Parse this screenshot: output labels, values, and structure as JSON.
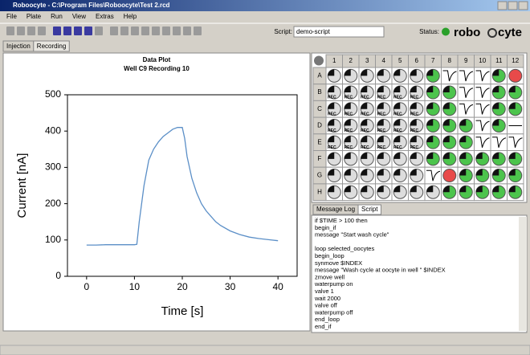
{
  "window": {
    "title": "Roboocyte - C:\\Program Files\\Roboocyte\\Test 2.rcd"
  },
  "menu": [
    "File",
    "Plate",
    "Run",
    "View",
    "Extras",
    "Help"
  ],
  "toolbar": {
    "script_label": "Script:",
    "script_name": "demo-script",
    "status_label": "Status:",
    "logo_left": "robo",
    "logo_right": "cyte"
  },
  "tabs": [
    "Injection",
    "Recording"
  ],
  "chart_data": {
    "type": "line",
    "title": "Data Plot",
    "subtitle": "Well C9 Recording 10",
    "x_label": "Time [s]",
    "y_label": "Current [nA]",
    "x": [
      0,
      2,
      4,
      6,
      8,
      10,
      10.5,
      11,
      12,
      13,
      14,
      15,
      16,
      17,
      18,
      19,
      20,
      20.5,
      21,
      22,
      23,
      24,
      25,
      26,
      27,
      28,
      30,
      32,
      34,
      36,
      38,
      40
    ],
    "values": [
      86,
      86,
      87,
      87,
      87,
      87,
      88,
      150,
      250,
      320,
      350,
      370,
      385,
      395,
      405,
      410,
      410,
      380,
      330,
      270,
      230,
      200,
      180,
      165,
      150,
      140,
      125,
      115,
      108,
      104,
      101,
      98
    ],
    "color": "#5b8fc7",
    "xlim": [
      -4,
      44
    ],
    "ylim": [
      0,
      500
    ],
    "xticks": [
      0,
      10,
      20,
      30,
      40
    ],
    "yticks": [
      0,
      100,
      200,
      300,
      400,
      500
    ]
  },
  "plate": {
    "columns": [
      "1",
      "2",
      "3",
      "4",
      "5",
      "6",
      "7",
      "8",
      "9",
      "10",
      "11",
      "12"
    ],
    "rows": [
      "A",
      "B",
      "C",
      "D",
      "E",
      "F",
      "G",
      "H"
    ],
    "cells": [
      [
        null,
        null,
        null,
        null,
        null,
        null,
        null,
        null,
        null,
        null,
        null,
        null
      ],
      [
        "REC",
        "REC",
        "REC",
        "REC",
        "REC",
        "REC",
        null,
        null,
        null,
        null,
        null,
        null
      ],
      [
        "REC",
        "REC",
        "REC",
        "REC",
        "REC",
        "REC",
        null,
        null,
        null,
        null,
        null,
        null
      ],
      [
        "REC",
        "REC",
        "REC",
        "REC",
        "REC",
        "REC",
        null,
        null,
        null,
        null,
        null,
        null
      ],
      [
        "REC",
        "REC",
        "REC",
        "REC",
        "REC",
        "REC",
        null,
        null,
        null,
        null,
        null,
        null
      ],
      [
        null,
        null,
        null,
        null,
        null,
        null,
        null,
        null,
        null,
        null,
        null,
        null
      ],
      [
        null,
        null,
        null,
        null,
        null,
        null,
        null,
        null,
        null,
        null,
        null,
        null
      ],
      [
        null,
        null,
        null,
        null,
        null,
        null,
        null,
        null,
        null,
        null,
        null,
        null
      ]
    ]
  },
  "log_tabs": [
    "Message Log",
    "Script"
  ],
  "script": [
    "if $TIME > 100 then",
    "begin_if",
    "message \"Start wash cycle\"",
    "loop selected_oocytes",
    "begin_loop",
    "synmove $INDEX",
    "message \"Wash cycle at oocyte in well \" $INDEX",
    "zmove well",
    "waterpump on",
    "valve 1",
    "wait 2000",
    "valve off",
    "waterpump off",
    "end_loop",
    "end_if"
  ]
}
